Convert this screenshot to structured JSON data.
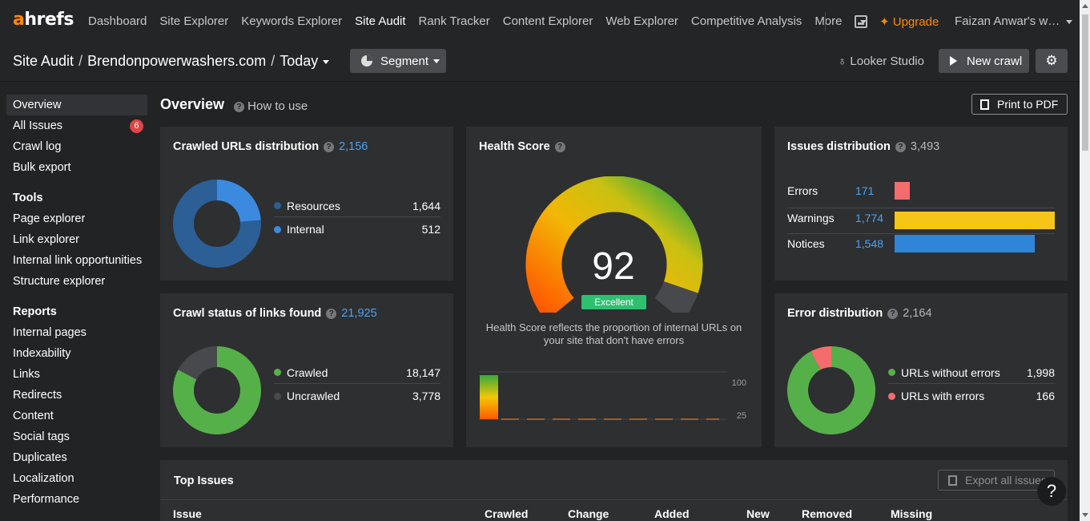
{
  "nav": {
    "logo_a": "a",
    "logo_rest": "hrefs",
    "links": [
      "Dashboard",
      "Site Explorer",
      "Keywords Explorer",
      "Site Audit",
      "Rank Tracker",
      "Content Explorer",
      "Web Explorer",
      "Competitive Analysis",
      "More"
    ],
    "active": "Site Audit",
    "upgrade": "Upgrade",
    "user": "Faizan Anwar's w…"
  },
  "breadcrumb": {
    "tool": "Site Audit",
    "project": "Brendonpowerwashers.com",
    "date": "Today",
    "separator": "/"
  },
  "toolbar": {
    "segment": "Segment",
    "looker": "Looker Studio",
    "new_crawl": "New crawl"
  },
  "sidebar": {
    "top": [
      {
        "label": "Overview",
        "active": true
      },
      {
        "label": "All Issues",
        "badge": "6"
      },
      {
        "label": "Crawl log"
      },
      {
        "label": "Bulk export"
      }
    ],
    "tools_heading": "Tools",
    "tools": [
      "Page explorer",
      "Link explorer",
      "Internal link opportunities",
      "Structure explorer"
    ],
    "reports_heading": "Reports",
    "reports": [
      "Internal pages",
      "Indexability",
      "Links",
      "Redirects",
      "Content",
      "Social tags",
      "Duplicates",
      "Localization",
      "Performance"
    ]
  },
  "overview": {
    "title": "Overview",
    "how_to_use": "How to use",
    "print_pdf": "Print to PDF"
  },
  "crawled_urls": {
    "title": "Crawled URLs distribution",
    "total": "2,156",
    "items": [
      {
        "label": "Resources",
        "value": "1,644",
        "raw": 1644,
        "color": "#2b5f95"
      },
      {
        "label": "Internal",
        "value": "512",
        "raw": 512,
        "color": "#3c8ae0"
      }
    ]
  },
  "crawl_status": {
    "title": "Crawl status of links found",
    "total": "21,925",
    "items": [
      {
        "label": "Crawled",
        "value": "18,147",
        "raw": 18147,
        "color": "#56b04a"
      },
      {
        "label": "Uncrawled",
        "value": "3,778",
        "raw": 3778,
        "color": "#48494c"
      }
    ]
  },
  "health_score": {
    "title": "Health Score",
    "score": "92",
    "rating": "Excellent",
    "rating_color": "#2fbf71",
    "description": "Health Score reflects the proportion of internal URLs on your site that don't have errors",
    "axis": [
      "100",
      "25"
    ]
  },
  "issues_distribution": {
    "title": "Issues distribution",
    "total": "3,493",
    "items": [
      {
        "label": "Errors",
        "value": "171",
        "raw": 171,
        "color": "#f46c6c"
      },
      {
        "label": "Warnings",
        "value": "1,774",
        "raw": 1774,
        "color": "#f5c518"
      },
      {
        "label": "Notices",
        "value": "1,548",
        "raw": 1548,
        "color": "#2f86d8"
      }
    ]
  },
  "error_distribution": {
    "title": "Error distribution",
    "total": "2,164",
    "items": [
      {
        "label": "URLs without errors",
        "value": "1,998",
        "raw": 1998,
        "color": "#56b04a"
      },
      {
        "label": "URLs with errors",
        "value": "166",
        "raw": 166,
        "color": "#f46c6c"
      }
    ]
  },
  "top_issues": {
    "title": "Top Issues",
    "export": "Export all issues",
    "columns": [
      "Issue",
      "Crawled",
      "Change",
      "Added",
      "New",
      "Removed",
      "Missing"
    ]
  },
  "help": "?"
}
